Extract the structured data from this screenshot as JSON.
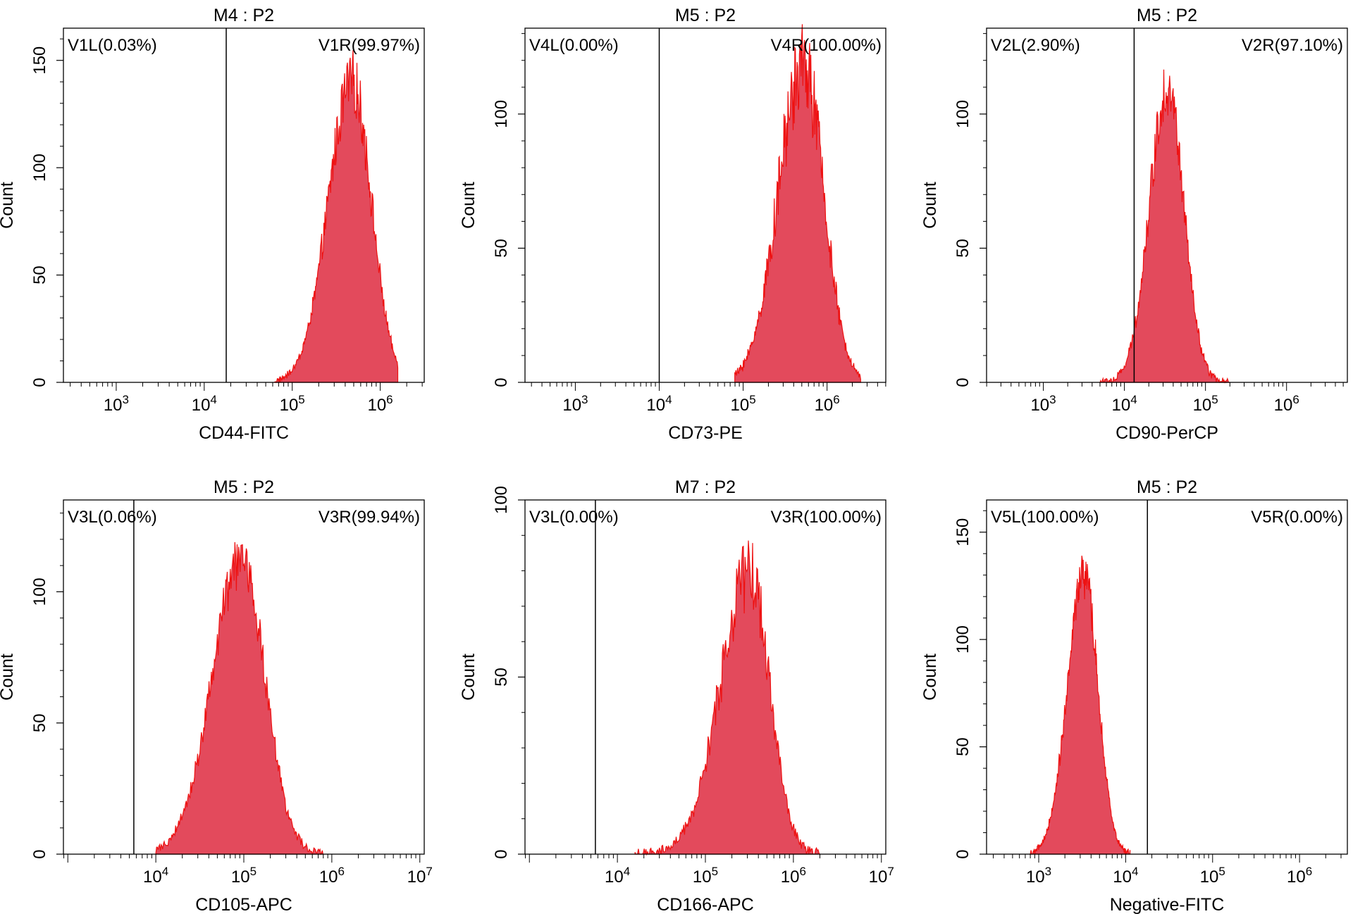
{
  "chart_data": [
    {
      "type": "area",
      "title": "M4 : P2",
      "xlabel": "CD44-FITC",
      "ylabel": "Count",
      "xlim_log10": [
        2.4,
        6.5
      ],
      "ylim": [
        0,
        165
      ],
      "yticks": [
        0,
        50,
        100,
        150
      ],
      "xticks": [
        {
          "exp": 3,
          "label": "10",
          "sup": "3"
        },
        {
          "exp": 4,
          "label": "10",
          "sup": "4"
        },
        {
          "exp": 5,
          "label": "10",
          "sup": "5"
        },
        {
          "exp": 6,
          "label": "10",
          "sup": "6"
        }
      ],
      "gate_log10": 4.25,
      "regions": {
        "left": "V1L(0.03%)",
        "right": "V1R(99.97%)"
      },
      "peak": {
        "center_log10": 5.68,
        "sigma_left": 0.27,
        "sigma_right": 0.22,
        "height": 140,
        "start_log10": 4.8,
        "end_log10": 6.2,
        "noise": 0.1
      }
    },
    {
      "type": "area",
      "title": "M5 : P2",
      "xlabel": "CD73-PE",
      "ylabel": "Count",
      "xlim_log10": [
        2.4,
        6.7
      ],
      "ylim": [
        0,
        132
      ],
      "yticks": [
        0,
        50,
        100
      ],
      "xticks": [
        {
          "exp": 3,
          "label": "10",
          "sup": "3"
        },
        {
          "exp": 4,
          "label": "10",
          "sup": "4"
        },
        {
          "exp": 5,
          "label": "10",
          "sup": "5"
        },
        {
          "exp": 6,
          "label": "10",
          "sup": "6"
        }
      ],
      "gate_log10": 4.0,
      "regions": {
        "left": "V4L(0.00%)",
        "right": "V4R(100.00%)"
      },
      "peak": {
        "center_log10": 5.72,
        "sigma_left": 0.3,
        "sigma_right": 0.24,
        "height": 118,
        "start_log10": 4.9,
        "end_log10": 6.4,
        "noise": 0.14
      }
    },
    {
      "type": "area",
      "title": "M5 : P2",
      "xlabel": "CD90-PerCP",
      "ylabel": "Count",
      "xlim_log10": [
        2.3,
        6.75
      ],
      "ylim": [
        0,
        132
      ],
      "yticks": [
        0,
        50,
        100
      ],
      "xticks": [
        {
          "exp": 3,
          "label": "10",
          "sup": "3"
        },
        {
          "exp": 4,
          "label": "10",
          "sup": "4"
        },
        {
          "exp": 5,
          "label": "10",
          "sup": "5"
        },
        {
          "exp": 6,
          "label": "10",
          "sup": "6"
        }
      ],
      "gate_log10": 4.12,
      "regions": {
        "left": "V2L(2.90%)",
        "right": "V2R(97.10%)"
      },
      "peak": {
        "center_log10": 4.53,
        "sigma_left": 0.22,
        "sigma_right": 0.2,
        "height": 110,
        "start_log10": 3.7,
        "end_log10": 5.3,
        "noise": 0.1
      }
    },
    {
      "type": "area",
      "title": "M5 : P2",
      "xlabel": "CD105-APC",
      "ylabel": "Count",
      "xlim_log10": [
        2.95,
        7.05
      ],
      "ylim": [
        0,
        135
      ],
      "yticks": [
        0,
        50,
        100
      ],
      "xticks": [
        {
          "exp": 4,
          "label": "10",
          "sup": "4"
        },
        {
          "exp": 5,
          "label": "10",
          "sup": "5"
        },
        {
          "exp": 6,
          "label": "10",
          "sup": "6"
        },
        {
          "exp": 7,
          "label": "10",
          "sup": "7"
        }
      ],
      "gate_log10": 3.75,
      "regions": {
        "left": "V3L(0.06%)",
        "right": "V3R(99.94%)"
      },
      "peak": {
        "center_log10": 4.97,
        "sigma_left": 0.33,
        "sigma_right": 0.27,
        "height": 112,
        "start_log10": 4.0,
        "end_log10": 5.9,
        "noise": 0.09
      }
    },
    {
      "type": "area",
      "title": "M7 : P2",
      "xlabel": "CD166-APC",
      "ylabel": "Count",
      "xlim_log10": [
        2.95,
        7.05
      ],
      "ylim": [
        0,
        100
      ],
      "yticks": [
        0,
        50,
        100
      ],
      "xticks": [
        {
          "exp": 4,
          "label": "10",
          "sup": "4"
        },
        {
          "exp": 5,
          "label": "10",
          "sup": "5"
        },
        {
          "exp": 6,
          "label": "10",
          "sup": "6"
        },
        {
          "exp": 7,
          "label": "10",
          "sup": "7"
        }
      ],
      "gate_log10": 3.75,
      "regions": {
        "left": "V3L(0.00%)",
        "right": "V3R(100.00%)"
      },
      "peak": {
        "center_log10": 5.5,
        "sigma_left": 0.33,
        "sigma_right": 0.23,
        "height": 80,
        "start_log10": 4.2,
        "end_log10": 6.3,
        "noise": 0.13
      }
    },
    {
      "type": "area",
      "title": "M5 : P2",
      "xlabel": "Negative-FITC",
      "ylabel": "Count",
      "xlim_log10": [
        2.4,
        6.55
      ],
      "ylim": [
        0,
        165
      ],
      "yticks": [
        0,
        50,
        100,
        150
      ],
      "xticks": [
        {
          "exp": 3,
          "label": "10",
          "sup": "3"
        },
        {
          "exp": 4,
          "label": "10",
          "sup": "4"
        },
        {
          "exp": 5,
          "label": "10",
          "sup": "5"
        },
        {
          "exp": 6,
          "label": "10",
          "sup": "6"
        }
      ],
      "gate_log10": 4.25,
      "regions": {
        "left": "V5L(100.00%)",
        "right": "V5R(0.00%)"
      },
      "peak": {
        "center_log10": 3.52,
        "sigma_left": 0.19,
        "sigma_right": 0.16,
        "height": 130,
        "start_log10": 2.9,
        "end_log10": 4.05,
        "noise": 0.08
      }
    }
  ],
  "style": {
    "fill": "#e34a5c",
    "stroke": "#ee1111",
    "axis": "#000000"
  }
}
